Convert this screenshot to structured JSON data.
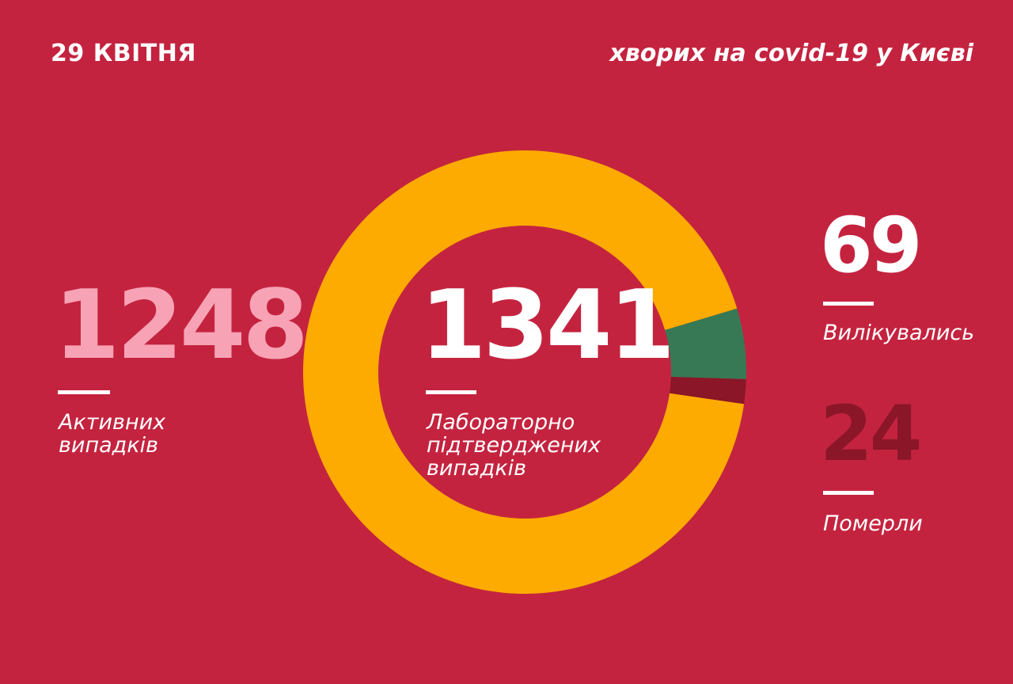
{
  "header": {
    "date": "29 КВІТНЯ",
    "title": "хворих на covid-19 у Києві"
  },
  "stats": {
    "active": {
      "value": "1248",
      "label_line1": "Активних",
      "label_line2": "випадків"
    },
    "confirmed": {
      "value": "1341",
      "label_line1": "Лабораторно",
      "label_line2": "підтверджених",
      "label_line3": "випадків"
    },
    "recovered": {
      "value": "69",
      "label": "Вилікувались"
    },
    "deaths": {
      "value": "24",
      "label": "Померли"
    }
  },
  "colors": {
    "background": "#c4233f",
    "active": "#fdab01",
    "recovered": "#377955",
    "deaths": "#8a1628",
    "active_number": "#f7a3b5",
    "text": "#ffffff"
  },
  "chart_data": {
    "type": "pie",
    "donut": true,
    "total": 1341,
    "slices": [
      {
        "category": "active",
        "value": 1248,
        "color": "#fdab01"
      },
      {
        "category": "recovered",
        "value": 69,
        "color": "#377955"
      },
      {
        "category": "deaths",
        "value": 24,
        "color": "#8a1628"
      }
    ]
  }
}
